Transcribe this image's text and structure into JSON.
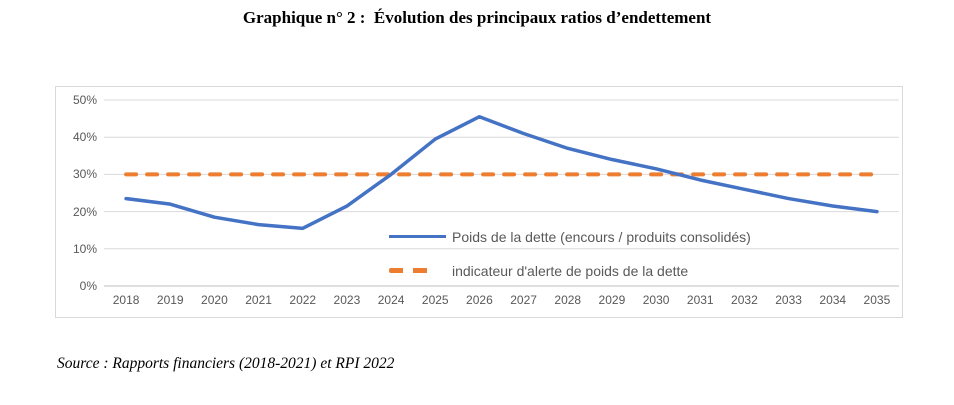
{
  "title": "Graphique n° 2 :  Évolution des principaux ratios d’endettement",
  "source_note": "Source : Rapports financiers (2018-2021) et RPI 2022",
  "chart_data": {
    "type": "line",
    "title": "Graphique n° 2 : Évolution des principaux ratios d’endettement",
    "categories": [
      "2018",
      "2019",
      "2020",
      "2021",
      "2022",
      "2023",
      "2024",
      "2025",
      "2026",
      "2027",
      "2028",
      "2029",
      "2030",
      "2031",
      "2032",
      "2033",
      "2034",
      "2035"
    ],
    "series": [
      {
        "id": "debt-ratio",
        "name": "Poids de la dette (encours / produits consolidés)",
        "color": "#4472C4",
        "dash": "solid",
        "values": [
          23.5,
          22,
          18.5,
          16.5,
          15.5,
          21.5,
          30,
          39.5,
          45.5,
          41,
          37,
          34,
          31.5,
          28.5,
          26,
          23.5,
          21.5,
          20
        ]
      },
      {
        "id": "alert-threshold",
        "name": "indicateur d'alerte de poids de la dette",
        "color": "#ED7D31",
        "dash": "dashed",
        "values": [
          30,
          30,
          30,
          30,
          30,
          30,
          30,
          30,
          30,
          30,
          30,
          30,
          30,
          30,
          30,
          30,
          30,
          30
        ]
      }
    ],
    "xlabel": "",
    "ylabel": "",
    "ylim": [
      0,
      50
    ],
    "ytick_values": [
      0,
      10,
      20,
      30,
      40,
      50
    ],
    "ytick_labels": [
      "0%",
      "10%",
      "20%",
      "30%",
      "40%",
      "50%"
    ],
    "grid": true,
    "legend_position": "inside-center-right"
  },
  "colors": {
    "background": "#FFFFFF",
    "chart_border": "#D9D9D9",
    "gridline": "#D9D9D9",
    "axis_line": "#BFBFBF",
    "tick_text": "#595959",
    "legend_text": "#595959"
  }
}
